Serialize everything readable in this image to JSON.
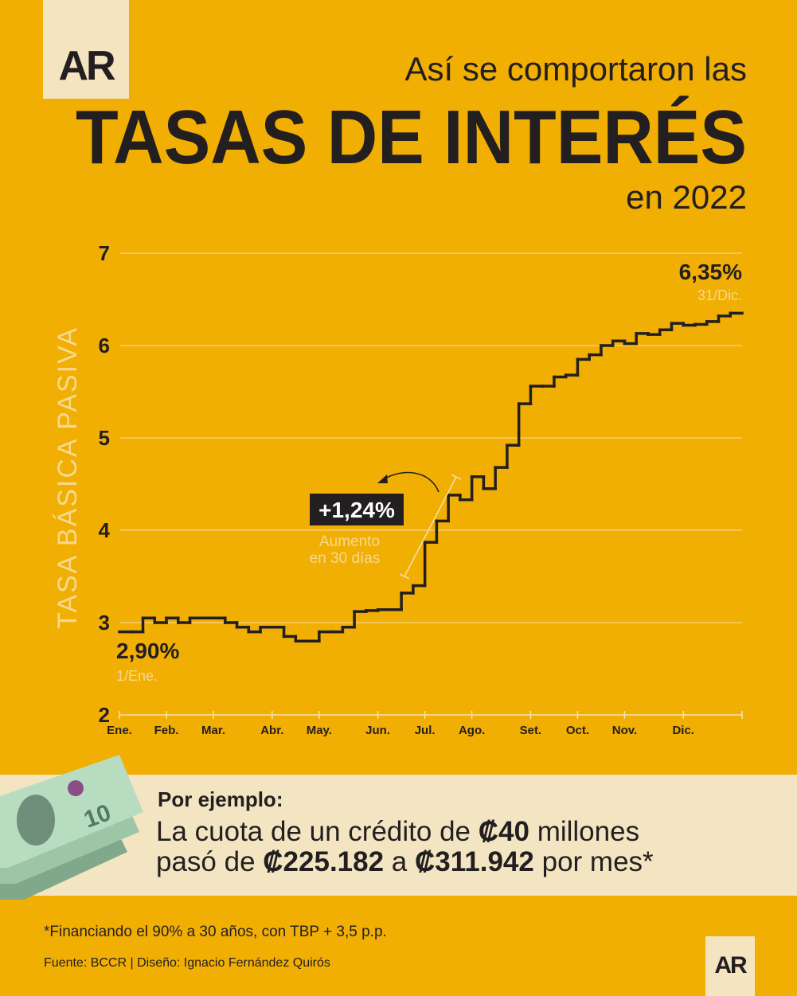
{
  "header": {
    "logo": "AR",
    "pretitle": "Así se comportaron las",
    "title": "TASAS DE INTERÉS",
    "posttitle": "en 2022"
  },
  "chart_data": {
    "type": "line",
    "step": true,
    "y_label": "TASA BÁSICA PASIVA",
    "color": "#231f20",
    "grid": true,
    "ylim": [
      2,
      7
    ],
    "yticks": [
      2,
      3,
      4,
      5,
      6,
      7
    ],
    "categories": [
      "Ene.",
      null,
      null,
      null,
      "Feb.",
      null,
      null,
      null,
      "Mar.",
      null,
      null,
      null,
      null,
      "Abr.",
      null,
      null,
      null,
      "May.",
      null,
      null,
      null,
      null,
      "Jun.",
      null,
      null,
      null,
      "Jul.",
      null,
      null,
      null,
      "Ago.",
      null,
      null,
      null,
      null,
      "Set.",
      null,
      null,
      null,
      "Oct.",
      null,
      null,
      null,
      "Nov.",
      null,
      null,
      null,
      null,
      "Dic.",
      null,
      null,
      null,
      null
    ],
    "values": [
      2.9,
      2.9,
      3.05,
      3.0,
      3.05,
      3.0,
      3.05,
      3.05,
      3.05,
      3.0,
      2.95,
      2.9,
      2.95,
      2.95,
      2.85,
      2.8,
      2.8,
      2.9,
      2.9,
      2.95,
      3.12,
      3.13,
      3.14,
      3.14,
      3.32,
      3.4,
      3.87,
      4.1,
      4.38,
      4.33,
      4.58,
      4.45,
      4.68,
      4.92,
      5.37,
      5.56,
      5.56,
      5.66,
      5.68,
      5.85,
      5.9,
      6.0,
      6.05,
      6.02,
      6.13,
      6.12,
      6.17,
      6.24,
      6.22,
      6.23,
      6.26,
      6.32,
      6.35
    ],
    "annotations": {
      "start": {
        "label": "2,90%",
        "date": "1/Ene."
      },
      "end": {
        "label": "6,35%",
        "date": "31/Dic."
      },
      "change": {
        "label": "+1,24%",
        "note": [
          "Aumento",
          "en 30 días"
        ]
      }
    }
  },
  "example": {
    "label": "Por ejemplo:",
    "line1": [
      "La cuota de un crédito de ",
      "₡40",
      " millones"
    ],
    "line2": [
      "pasó de ",
      "₡225.182",
      " a ",
      "₡311.942",
      " por mes*"
    ]
  },
  "footnote": "*Financiando el 90% a 30 años, con TBP + 3,5 p.p.",
  "source": "Fuente: BCCR | Diseño: Ignacio Fernández Quirós",
  "footer_logo": "AR"
}
